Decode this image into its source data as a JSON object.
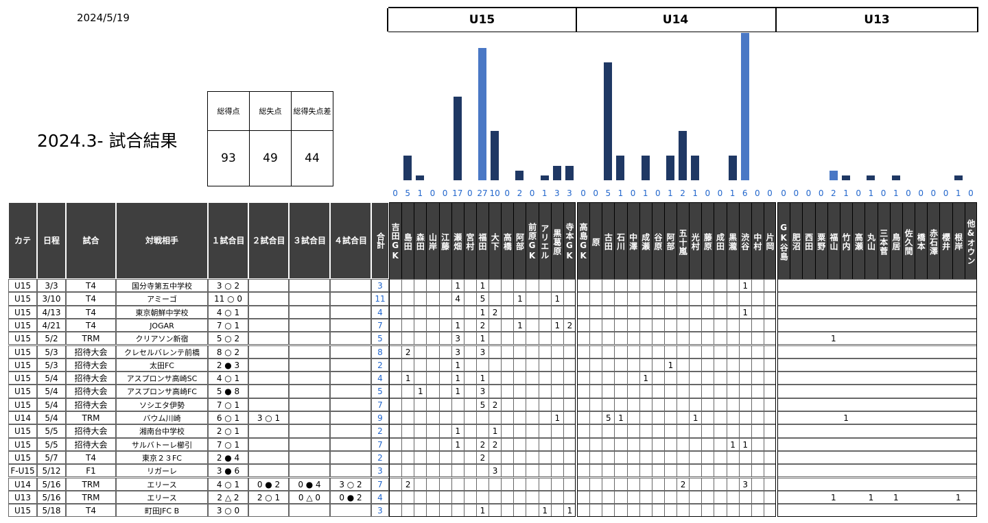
{
  "date": "2024/5/19",
  "title": "2024.3- 試合結果",
  "summary": {
    "labels": [
      "総得点",
      "総失点",
      "総得失点差"
    ],
    "values": [
      "93",
      "49",
      "44"
    ]
  },
  "groups": [
    "U15",
    "U14",
    "U13"
  ],
  "columns": [
    "カテ",
    "日程",
    "試合",
    "対戦相手",
    "１試合目",
    "２試合目",
    "３試合目",
    "４試合目",
    "合計"
  ],
  "colors": {
    "bar": "#1f3864",
    "highlight": "#4a78c5",
    "header": "#3f3f3f",
    "total": "#2266cc"
  },
  "players": {
    "U15": [
      "吉田GK",
      "島田",
      "森田",
      "山岸",
      "江藤",
      "瀬畑",
      "宮村",
      "福田",
      "大下",
      "高橋",
      "阿部",
      "前原GK",
      "アリエル",
      "黒葛原",
      "寺本GK"
    ],
    "U14": [
      "高島GK",
      "原",
      "古田",
      "石川",
      "中澤",
      "成瀬",
      "谷原",
      "阿部",
      "五十嵐",
      "光村",
      "藤原",
      "成田",
      "黒瀧",
      "渋谷",
      "中村",
      "片岡"
    ],
    "U13": [
      "GK谷島",
      "肥沼",
      "西田",
      "粟野",
      "福山",
      "竹内",
      "高瀬",
      "丸山",
      "三本菅",
      "鳥居",
      "佐久間",
      "橋本",
      "赤石澤",
      "櫻井",
      "根岸",
      "他&オウン"
    ]
  },
  "chart_data": {
    "type": "bar",
    "categories": [
      "吉田GK",
      "島田",
      "森田",
      "山岸",
      "江藤",
      "瀬畑",
      "宮村",
      "福田",
      "大下",
      "高橋",
      "阿部",
      "前原GK",
      "アリエル",
      "黒葛原",
      "寺本GK",
      "高島GK",
      "原",
      "古田",
      "石川",
      "中澤",
      "成瀬",
      "谷原",
      "阿部",
      "五十嵐",
      "光村",
      "藤原",
      "成田",
      "黒瀧",
      "渋谷",
      "中村",
      "片岡",
      "GK谷島",
      "肥沼",
      "西田",
      "粟野",
      "福山",
      "竹内",
      "高瀬",
      "丸山",
      "三本菅",
      "鳥居",
      "佐久間",
      "橋本",
      "赤石澤",
      "櫻井",
      "根岸",
      "他&オウン"
    ],
    "values": [
      0,
      5,
      1,
      0,
      0,
      17,
      0,
      27,
      10,
      0,
      2,
      0,
      1,
      3,
      3,
      0,
      0,
      5,
      1,
      0,
      1,
      0,
      1,
      2,
      1,
      0,
      0,
      1,
      6,
      0,
      0,
      0,
      0,
      0,
      0,
      2,
      1,
      0,
      1,
      0,
      1,
      0,
      0,
      0,
      0,
      1,
      0
    ],
    "bar_scale": [
      0,
      5,
      1,
      0,
      0,
      17,
      0,
      27,
      10,
      0,
      2,
      0,
      1,
      3,
      3,
      0,
      0,
      24,
      5,
      0,
      5,
      0,
      5,
      10,
      5,
      0,
      0,
      5,
      30,
      0,
      0,
      0,
      0,
      0,
      0,
      2,
      1,
      0,
      1,
      0,
      1,
      0,
      0,
      0,
      0,
      1,
      0
    ],
    "highlight": [
      7,
      28,
      35
    ]
  },
  "matches": [
    {
      "cat": "U15",
      "date": "3/3",
      "type": "T4",
      "opp": "国分寺第五中学校",
      "g": [
        "3 ○ 2",
        "",
        "",
        ""
      ],
      "total": "3",
      "s": {
        "5": "1",
        "7": "1",
        "28": "1"
      }
    },
    {
      "cat": "U15",
      "date": "3/10",
      "type": "T4",
      "opp": "アミーゴ",
      "g": [
        "11 ○ 0",
        "",
        "",
        ""
      ],
      "total": "11",
      "s": {
        "5": "4",
        "7": "5",
        "10": "1",
        "13": "1"
      }
    },
    {
      "cat": "U15",
      "date": "4/13",
      "type": "T4",
      "opp": "東京朝鮮中学校",
      "g": [
        "4 ○ 1",
        "",
        "",
        ""
      ],
      "total": "4",
      "s": {
        "7": "1",
        "8": "2",
        "28": "1"
      }
    },
    {
      "cat": "U15",
      "date": "4/21",
      "type": "T4",
      "opp": "JOGAR",
      "g": [
        "7 ○ 1",
        "",
        "",
        ""
      ],
      "total": "7",
      "s": {
        "5": "1",
        "7": "2",
        "10": "1",
        "13": "1",
        "14": "2"
      }
    },
    {
      "cat": "U15",
      "date": "5/2",
      "type": "TRM",
      "opp": "クリアソン新宿",
      "g": [
        "5 ○ 2",
        "",
        "",
        ""
      ],
      "total": "5",
      "s": {
        "5": "3",
        "7": "1",
        "35": "1"
      }
    },
    {
      "cat": "U15",
      "date": "5/3",
      "type": "招待大会",
      "opp": "クレセルバレンテ前橋",
      "g": [
        "8 ○ 2",
        "",
        "",
        ""
      ],
      "total": "8",
      "s": {
        "1": "2",
        "5": "3",
        "7": "3"
      }
    },
    {
      "cat": "U15",
      "date": "5/3",
      "type": "招待大会",
      "opp": "太田FC",
      "g": [
        "2 ● 3",
        "",
        "",
        ""
      ],
      "total": "2",
      "s": {
        "5": "1",
        "22": "1"
      }
    },
    {
      "cat": "U15",
      "date": "5/4",
      "type": "招待大会",
      "opp": "アスプロンサ高崎SC",
      "g": [
        "4 ○ 1",
        "",
        "",
        ""
      ],
      "total": "4",
      "s": {
        "1": "1",
        "5": "1",
        "7": "1",
        "20": "1"
      }
    },
    {
      "cat": "U15",
      "date": "5/4",
      "type": "招待大会",
      "opp": "アスプロンサ高崎FC",
      "g": [
        "5 ● 8",
        "",
        "",
        ""
      ],
      "total": "5",
      "s": {
        "2": "1",
        "5": "1",
        "7": "3"
      }
    },
    {
      "cat": "U15",
      "date": "5/4",
      "type": "招待大会",
      "opp": "ソシエタ伊勢",
      "g": [
        "7 ○ 1",
        "",
        "",
        ""
      ],
      "total": "7",
      "s": {
        "7": "5",
        "8": "2"
      }
    },
    {
      "cat": "U14",
      "date": "5/4",
      "type": "TRM",
      "opp": "バウム川崎",
      "g": [
        "6 ○ 1",
        "3 ○ 1",
        "",
        ""
      ],
      "total": "9",
      "s": {
        "13": "1",
        "17": "5",
        "18": "1",
        "24": "1",
        "36": "1"
      }
    },
    {
      "cat": "U15",
      "date": "5/5",
      "type": "招待大会",
      "opp": "湘南台中学校",
      "g": [
        "2 ○ 1",
        "",
        "",
        ""
      ],
      "total": "2",
      "s": {
        "5": "1",
        "8": "1"
      }
    },
    {
      "cat": "U15",
      "date": "5/5",
      "type": "招待大会",
      "opp": "サルバトーレ櫛引",
      "g": [
        "7 ○ 1",
        "",
        "",
        ""
      ],
      "total": "7",
      "s": {
        "5": "1",
        "7": "2",
        "8": "2",
        "27": "1",
        "28": "1"
      }
    },
    {
      "cat": "U15",
      "date": "5/7",
      "type": "T4",
      "opp": "東京２３FC",
      "g": [
        "2 ● 4",
        "",
        "",
        ""
      ],
      "total": "2",
      "s": {
        "7": "2"
      }
    },
    {
      "cat": "F-U15",
      "date": "5/12",
      "type": "F1",
      "opp": "リガーレ",
      "g": [
        "3 ● 6",
        "",
        "",
        ""
      ],
      "total": "3",
      "s": {
        "8": "3"
      }
    },
    {
      "cat": "U14",
      "date": "5/16",
      "type": "TRM",
      "opp": "エリース",
      "g": [
        "4 ○ 1",
        "0 ● 2",
        "0 ● 4",
        "3 ○ 2"
      ],
      "total": "7",
      "s": {
        "1": "2",
        "23": "2",
        "28": "3"
      }
    },
    {
      "cat": "U13",
      "date": "5/16",
      "type": "TRM",
      "opp": "エリース",
      "g": [
        "2 △ 2",
        "2 ○ 1",
        "0 △ 0",
        "0 ● 2"
      ],
      "total": "4",
      "s": {
        "35": "1",
        "38": "1",
        "40": "1",
        "45": "1"
      }
    },
    {
      "cat": "U15",
      "date": "5/18",
      "type": "T4",
      "opp": "町田JFC B",
      "g": [
        "3 ○ 0",
        "",
        "",
        ""
      ],
      "total": "3",
      "s": {
        "7": "1",
        "12": "1",
        "14": "1"
      }
    }
  ]
}
